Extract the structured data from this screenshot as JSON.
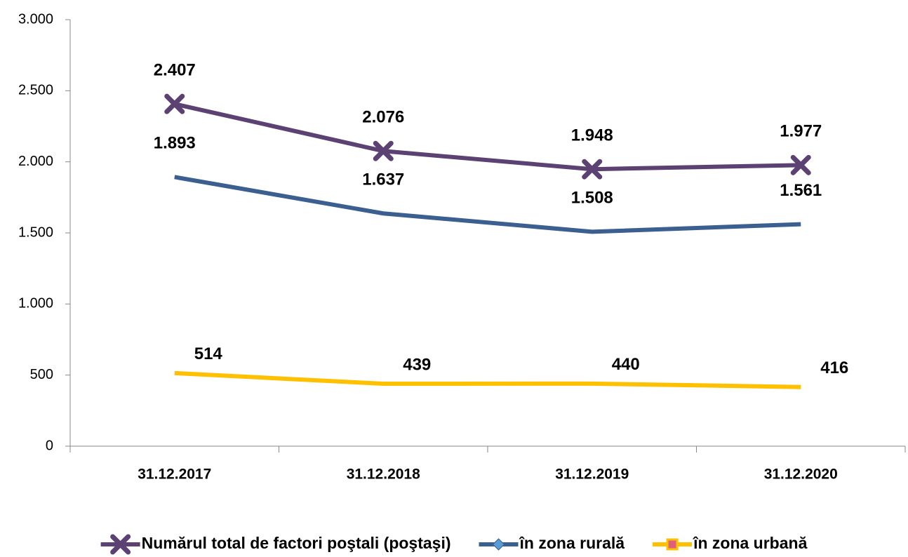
{
  "chart_data": {
    "type": "line",
    "categories": [
      "31.12.2017",
      "31.12.2018",
      "31.12.2019",
      "31.12.2020"
    ],
    "series": [
      {
        "name": "Numărul total de factori poştali (poştaşi)",
        "color": "#5c4272",
        "marker": "x",
        "values": [
          2407,
          2076,
          1948,
          1977
        ],
        "value_labels": [
          "2.407",
          "2.076",
          "1.948",
          "1.977"
        ]
      },
      {
        "name": "în zona rurală",
        "color": "#3b5f8e",
        "marker": "diamond",
        "values": [
          1893,
          1637,
          1508,
          1561
        ],
        "value_labels": [
          "1.893",
          "1.637",
          "1.508",
          "1.561"
        ]
      },
      {
        "name": "în zona urbană",
        "color": "#ffc000",
        "marker": "square",
        "values": [
          514,
          439,
          440,
          416
        ],
        "value_labels": [
          "514",
          "439",
          "440",
          "416"
        ]
      }
    ],
    "ylim": [
      0,
      3000
    ],
    "yticks": [
      0,
      500,
      {
        "value": 1000,
        "label": "1.000"
      },
      {
        "value": 1500,
        "label": "1.500"
      },
      {
        "value": 2000,
        "label": "2.000"
      },
      {
        "value": 2500,
        "label": "2.500"
      },
      {
        "value": 3000,
        "label": "3.000"
      }
    ],
    "grid": false,
    "legend": "bottom"
  }
}
